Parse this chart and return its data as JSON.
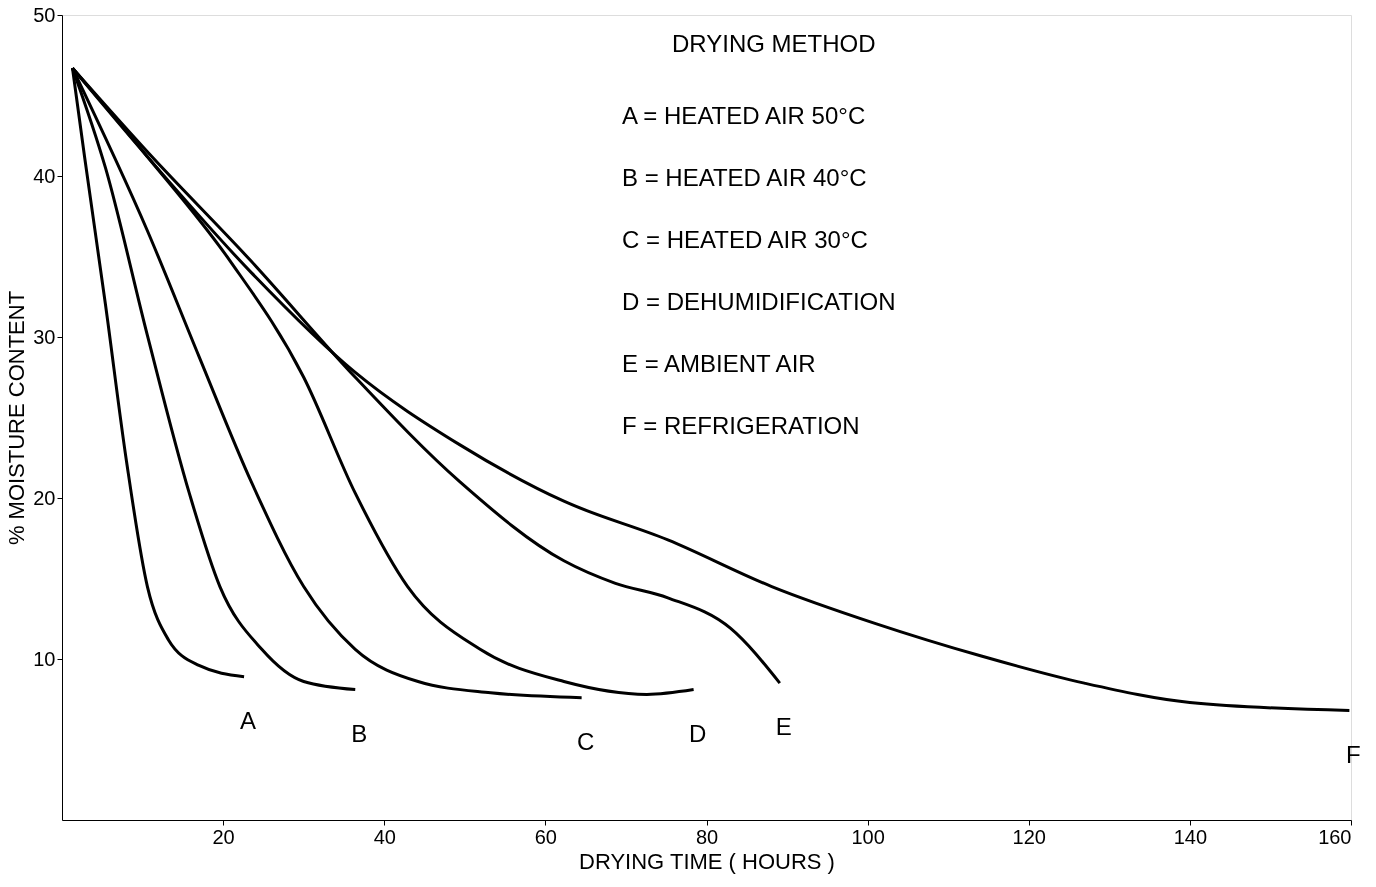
{
  "chart_data": {
    "type": "line",
    "xlabel": "DRYING TIME ( HOURS )",
    "ylabel": "% MOISTURE CONTENT",
    "xlim": [
      0,
      160
    ],
    "ylim": [
      0,
      50
    ],
    "xticks": [
      20,
      40,
      60,
      80,
      100,
      120,
      140,
      160
    ],
    "yticks": [
      10,
      20,
      30,
      40,
      50
    ],
    "grid": false,
    "marker": "none",
    "line_style": "solid",
    "series": [
      {
        "name": "A",
        "color": "#000000",
        "x": [
          1.3,
          2.8,
          5.4,
          8,
          10.6,
          13.2,
          17,
          22.6
        ],
        "values": [
          46.7,
          41.2,
          32,
          22.3,
          14.5,
          11.2,
          9.6,
          8.9
        ]
      },
      {
        "name": "B",
        "color": "#000000",
        "x": [
          1.3,
          5.4,
          10.6,
          15.8,
          19.6,
          24.8,
          30,
          36.4
        ],
        "values": [
          46.7,
          40.5,
          30.1,
          20.3,
          14.5,
          10.6,
          8.6,
          8.1
        ]
      },
      {
        "name": "C",
        "color": "#000000",
        "x": [
          1.3,
          10.6,
          17,
          23.5,
          30,
          36.4,
          44.2,
          53.2,
          64.5
        ],
        "values": [
          46.7,
          36.6,
          28.8,
          21,
          14.5,
          10.6,
          8.6,
          7.9,
          7.6
        ]
      },
      {
        "name": "D",
        "color": "#000000",
        "x": [
          1.3,
          10.6,
          20.9,
          30,
          36.4,
          42.9,
          51.9,
          62.3,
          72.6,
          78.4
        ],
        "values": [
          46.7,
          41.2,
          34.7,
          27.5,
          20.3,
          14.5,
          10.6,
          8.6,
          7.8,
          8.1
        ]
      },
      {
        "name": "E",
        "color": "#000000",
        "x": [
          1.3,
          10.6,
          23.5,
          36.4,
          49.4,
          62.3,
          68.7,
          75.2,
          83,
          89.1
        ],
        "values": [
          46.7,
          41.5,
          34.7,
          27.5,
          21,
          16.1,
          14.7,
          13.8,
          11.9,
          8.5
        ]
      },
      {
        "name": "F",
        "color": "#000000",
        "x": [
          1.3,
          10.6,
          23.5,
          36.4,
          49.4,
          62.3,
          75.2,
          88.1,
          101,
          114,
          126.9,
          140,
          159.8
        ],
        "values": [
          46.7,
          41.2,
          34,
          27.8,
          23.3,
          19.8,
          17.4,
          14.5,
          12.2,
          10.2,
          8.5,
          7.3,
          6.8
        ]
      }
    ],
    "annotations": [
      "DRYING METHOD",
      "A = HEATED AIR 50°C",
      "B = HEATED AIR 40°C",
      "C = HEATED AIR 30°C",
      "D = DEHUMIDIFICATION",
      "E = AMBIENT AIR",
      "F = REFRIGERATION"
    ]
  }
}
